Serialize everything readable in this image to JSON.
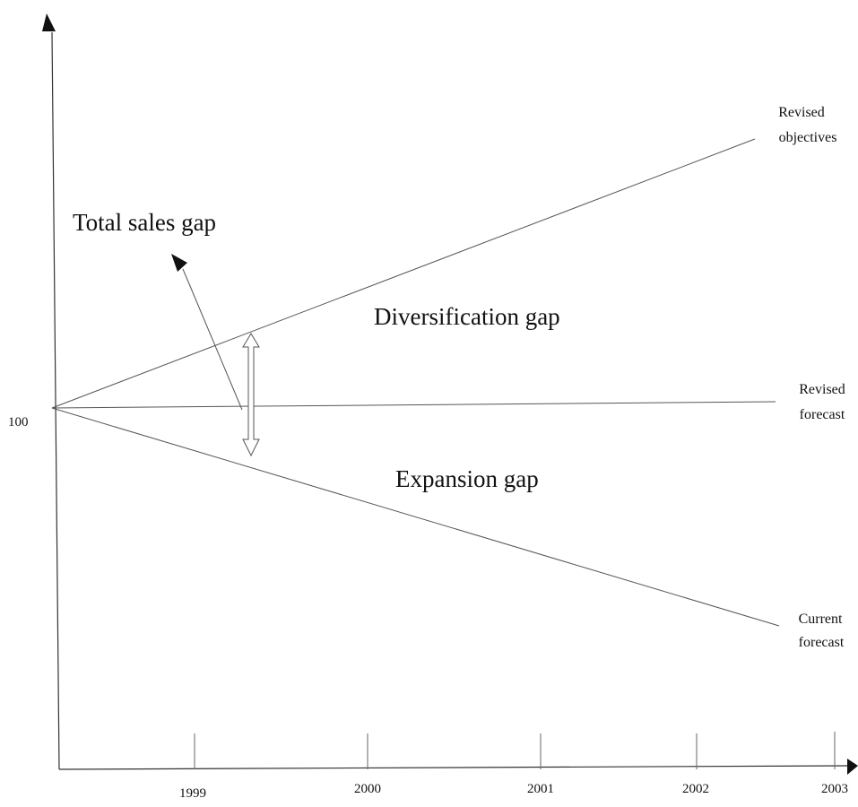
{
  "diagram": {
    "y_axis_value_label": "100",
    "x_tick_labels": [
      "1999",
      "2000",
      "2001",
      "2002",
      "2003"
    ],
    "lines": {
      "revised_objectives": [
        "Revised",
        "objectives"
      ],
      "revised_forecast": [
        "Revised",
        "forecast"
      ],
      "current_forecast": [
        "Current",
        "forecast"
      ]
    },
    "regions": {
      "total_sales_gap": "Total sales gap",
      "diversification_gap": "Diversification gap",
      "expansion_gap": "Expansion gap"
    }
  }
}
